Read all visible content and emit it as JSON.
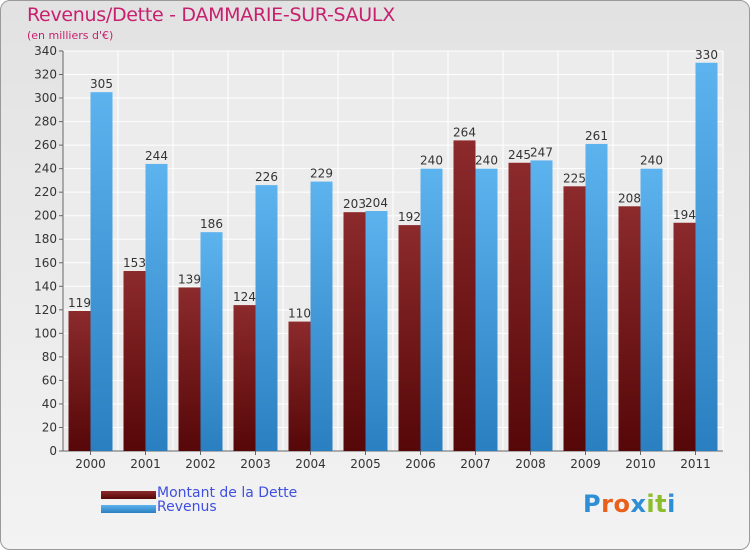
{
  "chart_data": {
    "type": "bar",
    "title": "Revenus/Dette - DAMMARIE-SUR-SAULX",
    "subtitle": "(en milliers d'€)",
    "categories": [
      "2000",
      "2001",
      "2002",
      "2003",
      "2004",
      "2005",
      "2006",
      "2007",
      "2008",
      "2009",
      "2010",
      "2011"
    ],
    "series": [
      {
        "name": "Montant de la Dette",
        "color": "#7a1a1c",
        "values": [
          119,
          153,
          139,
          124,
          110,
          203,
          192,
          264,
          245,
          225,
          208,
          194
        ]
      },
      {
        "name": "Revenus",
        "color": "#3d9ce0",
        "values": [
          305,
          244,
          186,
          226,
          229,
          204,
          240,
          240,
          247,
          261,
          240,
          330
        ]
      }
    ],
    "ylim": [
      0,
      340
    ],
    "yticks": [
      0,
      20,
      40,
      60,
      80,
      100,
      120,
      140,
      160,
      180,
      200,
      220,
      240,
      260,
      280,
      300,
      320,
      340
    ],
    "grid": true,
    "legend_position": "bottom-left",
    "xlabel": "",
    "ylabel": ""
  },
  "logo": {
    "text": "Proxiti",
    "letters": [
      "P",
      "r",
      "o",
      "x",
      "i",
      "t",
      "i"
    ],
    "colors": [
      "#2e8fd6",
      "#e8601c",
      "#e8601c",
      "#2e8fd6",
      "#8cbd2c",
      "#8cbd2c",
      "#2e8fd6"
    ]
  }
}
